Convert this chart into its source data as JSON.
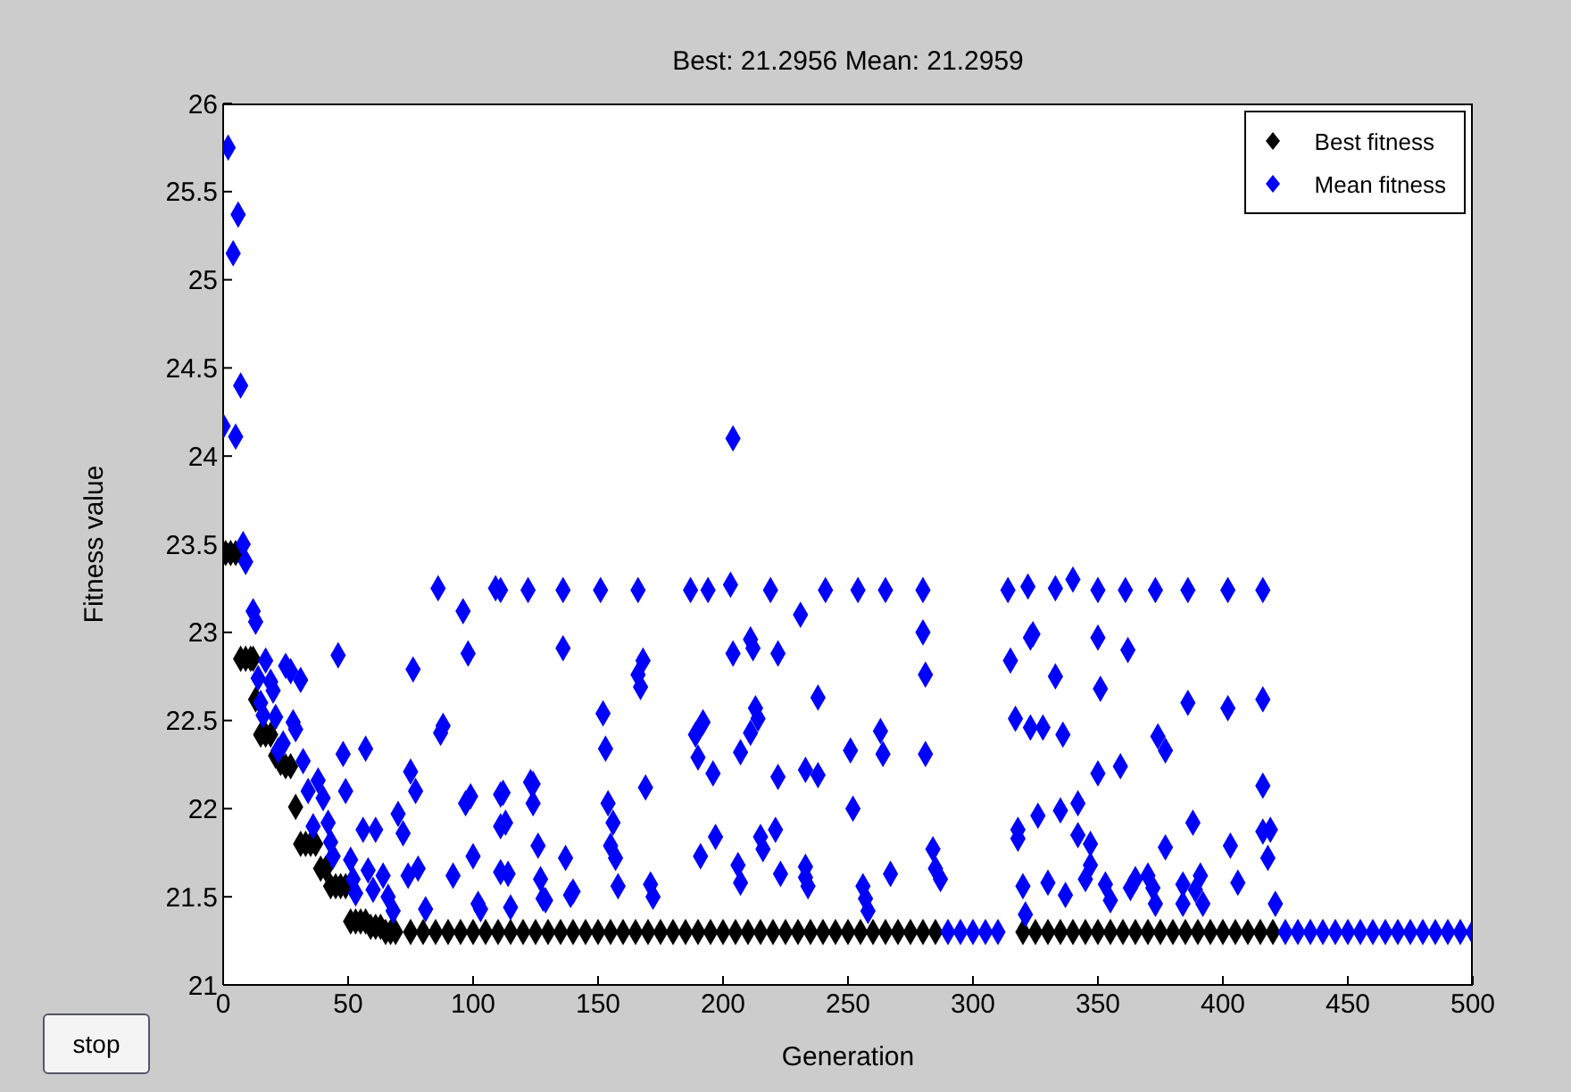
{
  "chart_data": {
    "type": "scatter",
    "title": "Best: 21.2956 Mean: 21.2959",
    "xlabel": "Generation",
    "ylabel": "Fitness value",
    "annotations": [
      "stop"
    ],
    "xlim": [
      0,
      500
    ],
    "xticks": [
      0,
      50,
      100,
      150,
      200,
      250,
      300,
      350,
      400,
      450,
      500
    ],
    "ylim": [
      21,
      26
    ],
    "yticks": [
      21,
      21.5,
      22,
      22.5,
      23,
      23.5,
      24,
      24.5,
      25,
      25.5,
      26
    ],
    "legend": "top right",
    "marker": "diamond",
    "grid": false,
    "series": [
      {
        "name": "Best fitness",
        "color": "#000000",
        "x": [
          1,
          3,
          5,
          7,
          9,
          11,
          12,
          13,
          15,
          17,
          19,
          21,
          23,
          25,
          27,
          29,
          31,
          33,
          35,
          37,
          39,
          41,
          43,
          45,
          47,
          49,
          51,
          53,
          55,
          57,
          59,
          61,
          63,
          65,
          67,
          69,
          75,
          80,
          85,
          90,
          95,
          100,
          105,
          110,
          115,
          120,
          125,
          130,
          135,
          140,
          145,
          150,
          155,
          160,
          165,
          170,
          175,
          180,
          185,
          190,
          195,
          200,
          205,
          210,
          215,
          220,
          225,
          230,
          235,
          240,
          245,
          250,
          255,
          260,
          265,
          270,
          275,
          280,
          285,
          290,
          295,
          300,
          305,
          310,
          315,
          320,
          325,
          330,
          335,
          340,
          345,
          350,
          355,
          360,
          365,
          370,
          375,
          380,
          385,
          390,
          395,
          400,
          405,
          410,
          415,
          420
        ],
        "values": [
          23.45,
          23.45,
          23.45,
          22.85,
          22.85,
          22.85,
          22.85,
          22.62,
          22.42,
          22.42,
          22.42,
          22.3,
          22.26,
          22.24,
          22.24,
          22.01,
          21.8,
          21.8,
          21.8,
          21.8,
          21.66,
          21.66,
          21.56,
          21.56,
          21.56,
          21.56,
          21.36,
          21.36,
          21.36,
          21.36,
          21.33,
          21.33,
          21.33,
          21.3,
          21.3,
          21.3,
          21.3,
          21.3,
          21.3,
          21.3,
          21.3,
          21.3,
          21.3,
          21.3,
          21.3,
          21.3,
          21.3,
          21.3,
          21.3,
          21.3,
          21.3,
          21.3,
          21.3,
          21.3,
          21.3,
          21.3,
          21.3,
          21.3,
          21.3,
          21.3,
          21.3,
          21.3,
          21.3,
          21.3,
          21.3,
          21.3,
          21.3,
          21.3,
          21.3,
          21.3,
          21.3,
          21.3,
          21.3,
          21.3,
          21.3,
          21.3,
          21.3,
          21.3,
          21.3,
          null,
          null,
          null,
          null,
          null,
          null,
          21.3,
          21.3,
          21.3,
          21.3,
          21.3,
          21.3,
          21.3,
          21.3,
          21.3,
          21.3,
          21.3,
          21.3,
          21.3,
          21.3,
          21.3,
          21.3,
          21.3,
          21.3,
          21.3,
          21.3,
          21.3
        ]
      },
      {
        "name": "Mean fitness",
        "color": "#0000ff",
        "x": [
          0,
          2,
          4,
          5,
          6,
          7,
          8,
          9,
          12,
          13,
          14,
          15,
          16,
          17,
          19,
          20,
          21,
          22,
          24,
          25,
          27,
          28,
          29,
          31,
          32,
          34,
          36,
          38,
          40,
          42,
          43,
          44,
          46,
          48,
          49,
          51,
          52,
          53,
          56,
          57,
          58,
          60,
          61,
          64,
          66,
          68,
          70,
          72,
          74,
          75,
          76,
          77,
          78,
          81,
          86,
          87,
          88,
          92,
          96,
          97,
          98,
          99,
          100,
          102,
          103,
          109,
          111,
          111,
          111,
          111,
          112,
          113,
          114,
          115,
          122,
          123,
          124,
          124,
          126,
          127,
          128,
          129,
          136,
          136,
          137,
          139,
          140,
          151,
          152,
          153,
          154,
          155,
          156,
          157,
          158,
          166,
          166,
          167,
          168,
          169,
          171,
          172,
          187,
          189,
          190,
          191,
          192,
          194,
          196,
          197,
          203,
          204,
          204,
          206,
          207,
          207,
          211,
          211,
          212,
          213,
          214,
          215,
          216,
          219,
          221,
          222,
          222,
          223,
          231,
          233,
          233,
          233,
          234,
          238,
          238,
          241,
          251,
          252,
          254,
          256,
          257,
          258,
          263,
          264,
          265,
          267,
          280,
          280,
          281,
          281,
          284,
          285,
          287,
          314,
          315,
          317,
          318,
          318,
          320,
          321,
          322,
          323,
          323,
          324,
          326,
          328,
          330,
          333,
          333,
          335,
          336,
          337,
          340,
          342,
          342,
          345,
          347,
          347,
          350,
          350,
          350,
          351,
          353,
          355,
          359,
          361,
          362,
          363,
          365,
          370,
          372,
          373,
          373,
          374,
          377,
          377,
          384,
          384,
          386,
          386,
          388,
          389,
          391,
          392,
          402,
          402,
          403,
          406,
          416,
          416,
          416,
          416,
          418,
          419,
          421,
          290,
          295,
          300,
          305,
          310,
          425,
          430,
          435,
          440,
          445,
          450,
          455,
          460,
          465,
          470,
          475,
          480,
          485,
          490,
          495,
          500
        ],
        "values": [
          24.17,
          25.75,
          25.15,
          24.11,
          25.37,
          24.4,
          23.5,
          23.4,
          23.12,
          23.06,
          22.74,
          22.6,
          22.53,
          22.84,
          22.72,
          22.67,
          22.52,
          22.33,
          22.37,
          22.81,
          22.78,
          22.49,
          22.45,
          22.73,
          22.27,
          22.1,
          21.9,
          22.16,
          22.06,
          21.92,
          21.81,
          21.73,
          22.87,
          22.31,
          22.1,
          21.71,
          21.6,
          21.52,
          21.88,
          22.34,
          21.65,
          21.54,
          21.88,
          21.62,
          21.5,
          21.42,
          21.97,
          21.86,
          21.62,
          22.21,
          22.79,
          22.1,
          21.66,
          21.43,
          23.25,
          22.43,
          22.47,
          21.62,
          23.12,
          22.03,
          22.88,
          22.07,
          21.73,
          21.46,
          21.43,
          23.25,
          23.24,
          22.08,
          21.9,
          21.64,
          22.09,
          21.92,
          21.63,
          21.44,
          23.24,
          22.15,
          22.03,
          22.14,
          21.79,
          21.6,
          21.49,
          21.48,
          23.24,
          22.91,
          21.72,
          21.51,
          21.53,
          23.24,
          22.54,
          22.34,
          22.03,
          21.79,
          21.92,
          21.72,
          21.56,
          23.24,
          22.76,
          22.69,
          22.84,
          22.12,
          21.57,
          21.5,
          23.24,
          22.42,
          22.29,
          21.73,
          22.49,
          23.24,
          22.2,
          21.84,
          23.27,
          22.88,
          24.1,
          21.68,
          22.32,
          21.58,
          22.96,
          22.43,
          22.91,
          22.57,
          22.51,
          21.84,
          21.77,
          23.24,
          21.88,
          22.88,
          22.18,
          21.63,
          23.1,
          22.22,
          21.67,
          21.61,
          21.56,
          22.63,
          22.19,
          23.24,
          22.33,
          22.0,
          23.24,
          21.56,
          21.49,
          21.42,
          22.44,
          22.31,
          23.24,
          21.63,
          23.24,
          23.0,
          22.76,
          22.31,
          21.77,
          21.66,
          21.6,
          23.24,
          22.84,
          22.51,
          21.88,
          21.83,
          21.56,
          21.4,
          23.26,
          22.97,
          22.46,
          22.99,
          21.96,
          22.46,
          21.58,
          23.25,
          22.75,
          21.99,
          22.42,
          21.51,
          23.3,
          22.03,
          21.85,
          21.6,
          21.8,
          21.68,
          23.24,
          22.97,
          22.2,
          22.68,
          21.57,
          21.48,
          22.24,
          23.24,
          22.9,
          21.55,
          21.6,
          21.62,
          21.55,
          23.24,
          21.46,
          22.41,
          22.33,
          21.78,
          21.57,
          21.46,
          23.24,
          22.6,
          21.92,
          21.54,
          21.62,
          21.46,
          23.24,
          22.57,
          21.79,
          21.58,
          23.24,
          22.62,
          22.13,
          21.87,
          21.72,
          21.88,
          21.46,
          21.3,
          21.3,
          21.3,
          21.3,
          21.3,
          21.3,
          21.3,
          21.3,
          21.3,
          21.3,
          21.3,
          21.3,
          21.3,
          21.3,
          21.3,
          21.3,
          21.3,
          21.3,
          21.3,
          21.3,
          21.3
        ]
      }
    ]
  }
}
